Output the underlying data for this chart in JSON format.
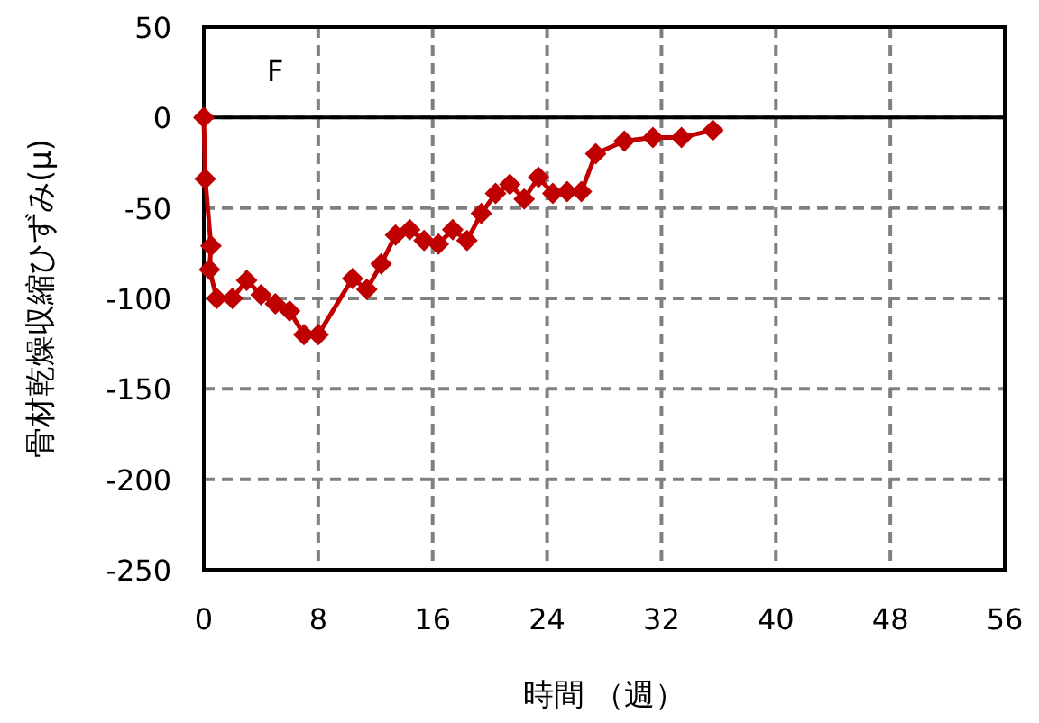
{
  "chart_data": {
    "type": "line",
    "xlabel": "時間 （週）",
    "ylabel": "骨材乾燥収縮ひずみ(μ)",
    "annotations": [
      "F"
    ],
    "xlim": [
      0,
      56
    ],
    "xticks": [
      0,
      8,
      16,
      24,
      32,
      40,
      48,
      56
    ],
    "ylim": [
      -250,
      50
    ],
    "yticks": [
      -250,
      -200,
      -150,
      -100,
      -50,
      0,
      50
    ],
    "grid": true,
    "marker": "diamond",
    "line_style": "solid",
    "ref_lines": [
      {
        "axis": "y",
        "value": 0,
        "color": "#000000",
        "line_style": "solid"
      }
    ],
    "series": [
      {
        "color": "#c00000",
        "x": [
          0,
          0.1,
          0.5,
          0.4,
          0.9,
          2,
          3,
          4,
          5,
          6,
          7,
          8,
          10.4,
          11.4,
          12.4,
          13.4,
          14.4,
          15.4,
          16.4,
          17.4,
          18.4,
          19.4,
          20.4,
          21.4,
          22.4,
          23.4,
          24.4,
          25.4,
          26.4,
          27.4,
          29.4,
          31.4,
          33.4,
          35.6
        ],
        "values": [
          0,
          -34,
          -71,
          -84,
          -100,
          -100,
          -90,
          -98,
          -103,
          -107,
          -120,
          -120,
          -89,
          -95,
          -81,
          -65,
          -62,
          -68,
          -70,
          -62,
          -68,
          -53,
          -42,
          -37,
          -45,
          -33,
          -42,
          -41,
          -41,
          -20,
          -13,
          -11,
          -11,
          -7
        ]
      }
    ]
  }
}
